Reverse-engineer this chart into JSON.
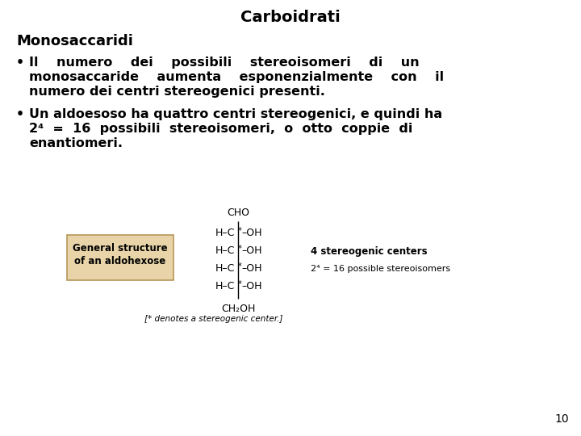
{
  "title": "Carboidrati",
  "subtitle": "Monosaccaridi",
  "bullet1_line1": "Il    numero    dei    possibili    stereoisomeri    di    un",
  "bullet1_line2": "monosaccaride    aumenta    esponenzialmente    con    il",
  "bullet1_line3": "numero dei centri stereogenici presenti.",
  "bullet2_line1": "Un aldoesoso ha quattro centri stereogenici, e quindi ha",
  "bullet2_line2": "2⁴  =  16  possibili  stereoisomeri,  o  otto  coppie  di",
  "bullet2_line3": "enantiomeri.",
  "page_number": "10",
  "background_color": "#ffffff",
  "text_color": "#000000",
  "title_fontsize": 14,
  "body_fontsize": 11.5,
  "subtitle_fontsize": 13,
  "box_label1": "General structure",
  "box_label2": "of an aldohexose",
  "annotation1": "4 stereogenic centers",
  "annotation2": "2⁴ = 16 possible stereoisomers",
  "footnote": "[* denotes a stereogenic center.]",
  "box_facecolor": "#E8D4A8",
  "box_edgecolor": "#B8965A"
}
